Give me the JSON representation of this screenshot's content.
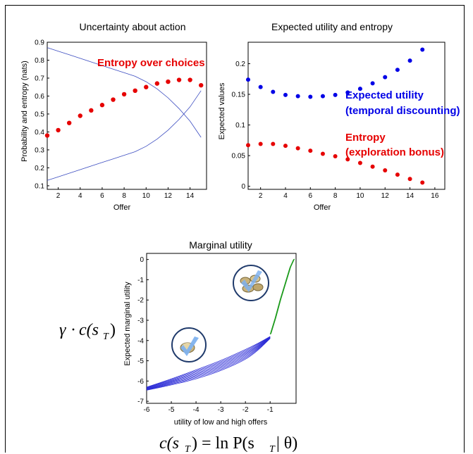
{
  "chart_data": [
    {
      "type": "line",
      "title": "Uncertainty about action",
      "xlabel": "Offer",
      "ylabel": "Probability and entropy (nats)",
      "xlim": [
        1,
        15.5
      ],
      "ylim": [
        0.08,
        0.9
      ],
      "xticks": [
        "2",
        "4",
        "6",
        "8",
        "10",
        "12",
        "14"
      ],
      "yticks": [
        "0.1",
        "0.2",
        "0.3",
        "0.4",
        "0.5",
        "0.6",
        "0.7",
        "0.8",
        "0.9"
      ],
      "annotation": "Entropy over choices",
      "series": [
        {
          "style": "line",
          "color": "#3b4cc0",
          "x": [
            1,
            2,
            3,
            4,
            5,
            6,
            7,
            8,
            9,
            10,
            11,
            12,
            13,
            14,
            15
          ],
          "y": [
            0.87,
            0.85,
            0.83,
            0.81,
            0.79,
            0.77,
            0.75,
            0.73,
            0.71,
            0.68,
            0.64,
            0.59,
            0.53,
            0.46,
            0.37
          ]
        },
        {
          "style": "line",
          "color": "#3b4cc0",
          "x": [
            1,
            2,
            3,
            4,
            5,
            6,
            7,
            8,
            9,
            10,
            11,
            12,
            13,
            14,
            15
          ],
          "y": [
            0.13,
            0.15,
            0.17,
            0.19,
            0.21,
            0.23,
            0.25,
            0.27,
            0.29,
            0.32,
            0.36,
            0.41,
            0.47,
            0.54,
            0.63
          ]
        },
        {
          "style": "dots",
          "color": "#e60000",
          "x": [
            1,
            2,
            3,
            4,
            5,
            6,
            7,
            8,
            9,
            10,
            11,
            12,
            13,
            14,
            15
          ],
          "y": [
            0.38,
            0.41,
            0.45,
            0.49,
            0.52,
            0.55,
            0.58,
            0.61,
            0.63,
            0.65,
            0.67,
            0.68,
            0.69,
            0.69,
            0.66
          ]
        }
      ]
    },
    {
      "type": "scatter",
      "title": "Expected utility and entropy",
      "xlabel": "Offer",
      "ylabel": "Expected values",
      "xlim": [
        1,
        16.8
      ],
      "ylim": [
        -0.005,
        0.235
      ],
      "xticks": [
        "2",
        "4",
        "6",
        "8",
        "10",
        "12",
        "14",
        "16"
      ],
      "yticks": [
        "0",
        "0.05",
        "0.1",
        "0.15",
        "0.2"
      ],
      "series": [
        {
          "name": "Expected utility (temporal discounting)",
          "color": "#0000e6",
          "x": [
            1,
            2,
            3,
            4,
            5,
            6,
            7,
            8,
            9,
            10,
            11,
            12,
            13,
            14,
            15
          ],
          "y": [
            0.174,
            0.162,
            0.154,
            0.149,
            0.147,
            0.146,
            0.147,
            0.149,
            0.153,
            0.159,
            0.168,
            0.178,
            0.19,
            0.205,
            0.223
          ]
        },
        {
          "name": "Entropy (exploration bonus)",
          "color": "#e60000",
          "x": [
            1,
            2,
            3,
            4,
            5,
            6,
            7,
            8,
            9,
            10,
            11,
            12,
            13,
            14,
            15
          ],
          "y": [
            0.067,
            0.069,
            0.069,
            0.066,
            0.062,
            0.058,
            0.053,
            0.049,
            0.044,
            0.038,
            0.032,
            0.026,
            0.019,
            0.012,
            0.006
          ]
        }
      ],
      "labels": [
        {
          "lines": [
            "Expected utility",
            "(temporal discounting)"
          ],
          "color": "#0000e6"
        },
        {
          "lines": [
            "Entropy",
            "(exploration bonus)"
          ],
          "color": "#e60000"
        }
      ]
    },
    {
      "type": "line",
      "title": "Marginal utility",
      "xlabel": "utility of low and high offers",
      "ylabel": "Expected marginal utility",
      "xlim": [
        -6,
        0.05
      ],
      "ylim": [
        -7.1,
        0.3
      ],
      "xticks": [
        "-6",
        "-5",
        "-4",
        "-3",
        "-2",
        "-1"
      ],
      "yticks": [
        "0",
        "-1",
        "-2",
        "-3",
        "-4",
        "-5",
        "-6",
        "-7"
      ],
      "upper_curve": {
        "color": "#1a9a1a",
        "x": [
          -1,
          -0.8,
          -0.6,
          -0.4,
          -0.2,
          -0.05
        ],
        "y": [
          -3.7,
          -2.9,
          -2.0,
          -1.2,
          -0.4,
          0.0
        ]
      },
      "lower_family": {
        "color": "#2b2bd6",
        "count": 9,
        "x": [
          -6,
          -5,
          -4,
          -3,
          -2,
          -1.5,
          -1
        ],
        "y_top": [
          -6.3,
          -5.9,
          -5.45,
          -5.0,
          -4.45,
          -4.15,
          -3.8
        ],
        "y_bottom": [
          -6.45,
          -6.2,
          -5.9,
          -5.5,
          -4.95,
          -4.5,
          -3.9
        ]
      }
    }
  ],
  "formulas": {
    "gamma": "γ",
    "dot": "·",
    "c_left": "c(s",
    "sub_T": "T",
    "close": ")",
    "bottom_c": "c(s",
    "bottom_eq": ") = ln P(s",
    "bottom_theta_part": " | θ)"
  },
  "icons": {
    "small": "coin-check-icon",
    "large": "coins-check-icon",
    "check_color": "#7fb2ee",
    "ring_color": "#1f3a6b"
  }
}
